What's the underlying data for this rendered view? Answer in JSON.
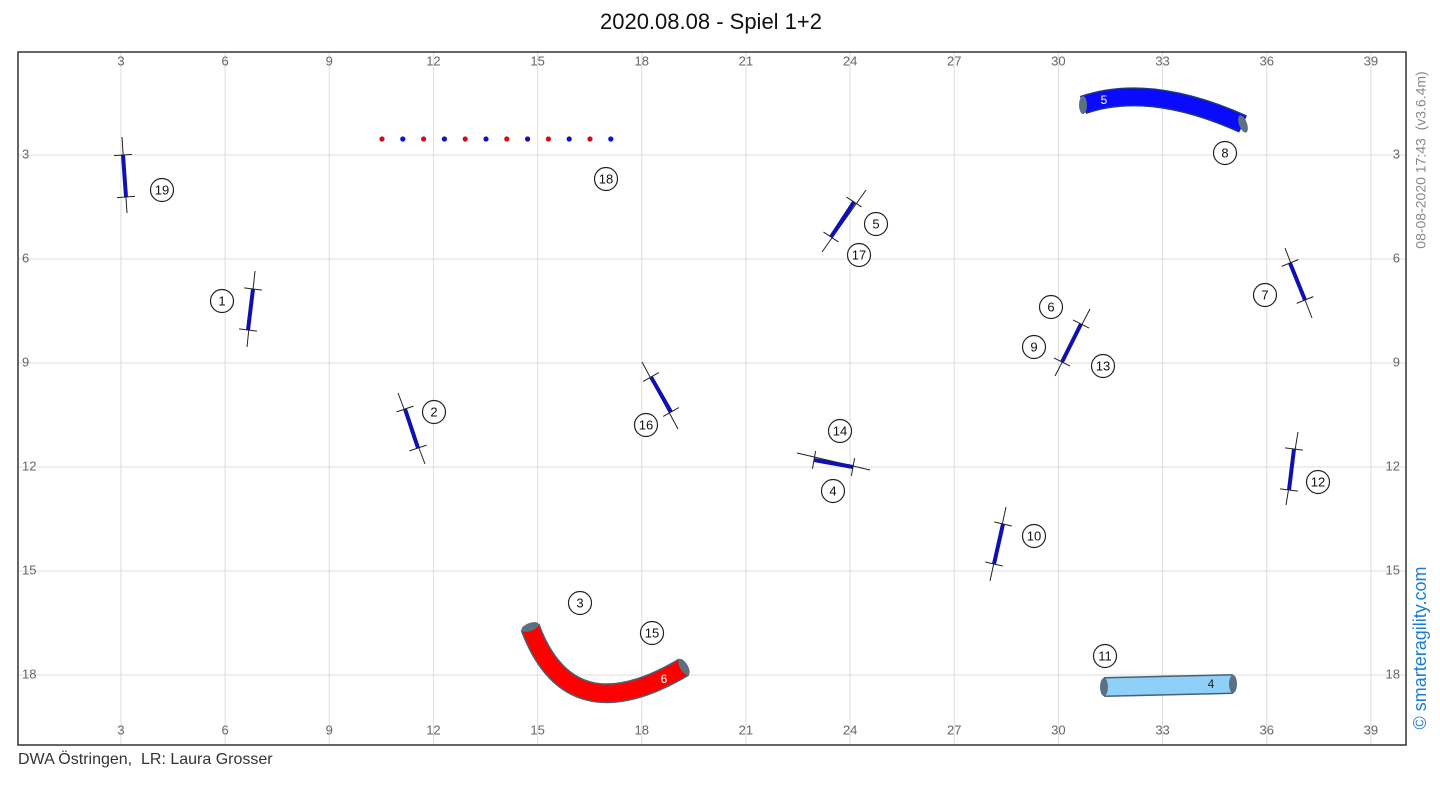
{
  "title": "2020.08.08 - Spiel 1+2",
  "footer": "DWA Östringen,  LR: Laura Grosser",
  "timestamp": "08-08-2020 17:43  (v3.6.4m)",
  "copyright": "© smarteragility.com",
  "axes": {
    "xticks": [
      3,
      6,
      9,
      12,
      15,
      18,
      21,
      24,
      27,
      30,
      33,
      36,
      39
    ],
    "yticks": [
      3,
      6,
      9,
      12,
      15,
      18
    ]
  },
  "numbers": [
    "19",
    "18",
    "5",
    "17",
    "8",
    "7",
    "1",
    "6",
    "9",
    "13",
    "2",
    "16",
    "14",
    "4",
    "12",
    "10",
    "3",
    "15",
    "11"
  ],
  "tunnels": [
    "5",
    "6",
    "4"
  ]
}
